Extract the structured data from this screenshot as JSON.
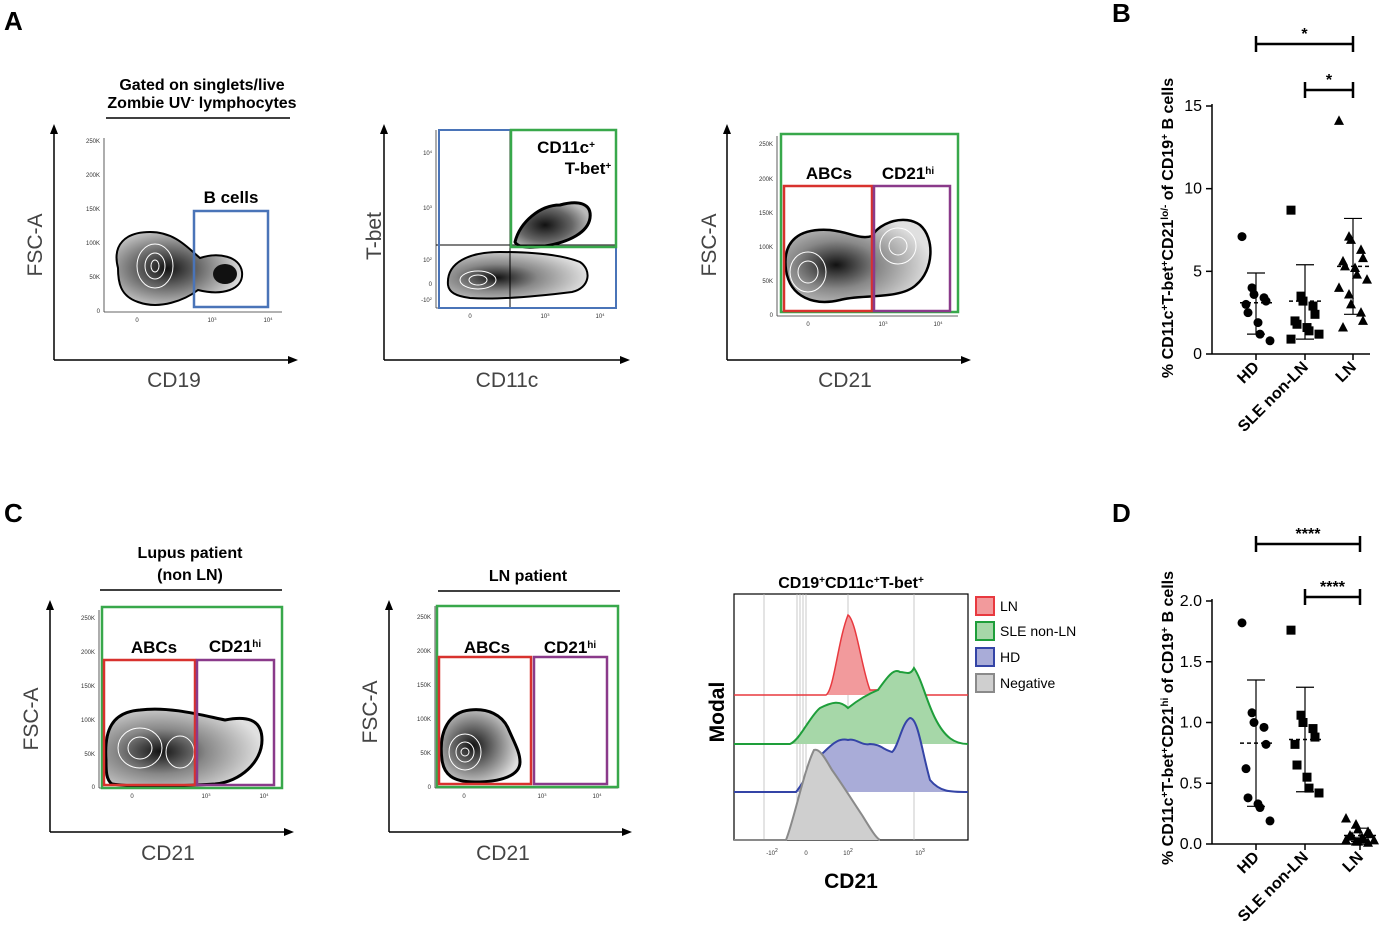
{
  "panels": {
    "A": {
      "letter": "A",
      "plot1": {
        "header_line1": "Gated on singlets/live",
        "header_line2_a": "Zombie UV",
        "header_line2_sup": "-",
        "header_line2_b": " lymphocytes",
        "y_label": "FSC-A",
        "x_label": "CD19",
        "gate_label": "B cells",
        "y_ticks": [
          "250K",
          "200K",
          "150K",
          "100K",
          "50K",
          "0"
        ],
        "x_ticks": [
          "0",
          "10",
          "10"
        ],
        "x_tick_sup": [
          "",
          "3",
          "4"
        ]
      },
      "plot2": {
        "y_label": "T-bet",
        "x_label": "CD11c",
        "gate_label_a": "CD11c",
        "gate_label_a_sup": "+",
        "gate_label_b": "T-bet",
        "gate_label_b_sup": "+",
        "y_ticks": [
          "10",
          "10",
          "10",
          "0",
          "-10"
        ],
        "y_tick_sup": [
          "4",
          "3",
          "2",
          "",
          "2"
        ],
        "x_ticks": [
          "0",
          "10",
          "10"
        ],
        "x_tick_sup": [
          "",
          "3",
          "4"
        ]
      },
      "plot3": {
        "y_label": "FSC-A",
        "x_label": "CD21",
        "gate1_label": "ABCs",
        "gate2_label": "CD21",
        "gate2_sup": "hi",
        "y_ticks": [
          "250K",
          "200K",
          "150K",
          "100K",
          "50K",
          "0"
        ],
        "x_ticks": [
          "0",
          "10",
          "10"
        ],
        "x_tick_sup": [
          "",
          "3",
          "4"
        ]
      }
    },
    "B": {
      "letter": "B",
      "y_label_parts": [
        "% CD11c",
        "+",
        "T-bet",
        "+",
        "CD21",
        "lo/-",
        " of CD19",
        "+",
        " B cells"
      ],
      "sig": [
        "*",
        "*"
      ]
    },
    "C": {
      "letter": "C",
      "plot1": {
        "header_line1": "Lupus patient",
        "header_line2": "(non LN)",
        "y_label": "FSC-A",
        "x_label": "CD21",
        "gate1_label": "ABCs",
        "gate2_label": "CD21",
        "gate2_sup": "hi",
        "y_ticks": [
          "250K",
          "200K",
          "150K",
          "100K",
          "50K",
          "0"
        ],
        "x_ticks": [
          "0",
          "10",
          "10"
        ],
        "x_tick_sup": [
          "",
          "3",
          "4"
        ]
      },
      "plot2": {
        "header": "LN patient",
        "y_label": "FSC-A",
        "x_label": "CD21",
        "gate1_label": "ABCs",
        "gate2_label": "CD21",
        "gate2_sup": "hi",
        "y_ticks": [
          "250K",
          "200K",
          "150K",
          "100K",
          "50K",
          "0"
        ],
        "x_ticks": [
          "0",
          "10",
          "10"
        ],
        "x_tick_sup": [
          "",
          "3",
          "4"
        ]
      },
      "histogram": {
        "title_parts": [
          "CD19",
          "+",
          "CD11c",
          "+",
          "T-bet",
          "+"
        ],
        "y_label": "Modal",
        "x_label": "CD21",
        "x_ticks": [
          "-10",
          "0",
          "10",
          "10"
        ],
        "x_tick_sup": [
          "2",
          "",
          "2",
          "3"
        ],
        "legend": [
          {
            "label": "LN",
            "color": "#e8393f",
            "fill": "#f29a9c"
          },
          {
            "label": "SLE non-LN",
            "color": "#1e9e3a",
            "fill": "#a6d7a8"
          },
          {
            "label": "HD",
            "color": "#3444a6",
            "fill": "#a9acd8"
          },
          {
            "label": "Negative",
            "color": "#8a8a8a",
            "fill": "#cfcfcf"
          }
        ]
      }
    },
    "D": {
      "letter": "D",
      "y_label_parts": [
        "% CD11c",
        "+",
        "T-bet",
        "+",
        "CD21",
        "hi",
        " of CD19",
        "+",
        " B cells"
      ],
      "sig": [
        "****",
        "****"
      ]
    }
  },
  "chart_data": [
    {
      "type": "scatter",
      "panel": "B",
      "categories": [
        "HD",
        "SLE non-LN",
        "LN"
      ],
      "ylim": [
        0,
        15
      ],
      "yticks": [
        "0",
        "5",
        "10",
        "15"
      ],
      "ytick_values": [
        0,
        5,
        10,
        15
      ],
      "series": [
        {
          "name": "HD",
          "marker": "circle",
          "values": [
            7.1,
            4.0,
            3.6,
            3.4,
            3.2,
            3.0,
            2.5,
            1.9,
            1.2,
            0.8
          ],
          "mean": 3.1,
          "sd_low": 1.2,
          "sd_high": 4.9
        },
        {
          "name": "SLE non-LN",
          "marker": "square",
          "values": [
            8.7,
            3.5,
            3.2,
            2.9,
            2.4,
            2.0,
            1.8,
            1.6,
            1.4,
            1.2,
            0.9
          ],
          "mean": 3.2,
          "sd_low": 0.9,
          "sd_high": 5.4
        },
        {
          "name": "LN",
          "marker": "triangle",
          "values": [
            14.1,
            7.1,
            6.9,
            6.3,
            5.8,
            5.6,
            5.3,
            5.2,
            4.8,
            4.5,
            4.0,
            3.6,
            3.0,
            2.5,
            2.0,
            1.6
          ],
          "mean": 5.3,
          "sd_low": 2.4,
          "sd_high": 8.2
        }
      ],
      "significance": [
        {
          "from": "HD",
          "to": "LN",
          "label": "*"
        },
        {
          "from": "SLE non-LN",
          "to": "LN",
          "label": "*"
        }
      ]
    },
    {
      "type": "scatter",
      "panel": "D",
      "categories": [
        "HD",
        "SLE non-LN",
        "LN"
      ],
      "ylim": [
        0,
        2.0
      ],
      "yticks": [
        "0.0",
        "0.5",
        "1.0",
        "1.5",
        "2.0"
      ],
      "ytick_values": [
        0,
        0.5,
        1.0,
        1.5,
        2.0
      ],
      "series": [
        {
          "name": "HD",
          "marker": "circle",
          "values": [
            1.82,
            1.08,
            1.0,
            0.96,
            0.82,
            0.62,
            0.38,
            0.33,
            0.3,
            0.19
          ],
          "mean": 0.83,
          "sd_low": 0.31,
          "sd_high": 1.35
        },
        {
          "name": "SLE non-LN",
          "marker": "square",
          "values": [
            1.76,
            1.06,
            1.0,
            0.95,
            0.88,
            0.82,
            0.65,
            0.55,
            0.46,
            0.42
          ],
          "mean": 0.86,
          "sd_low": 0.43,
          "sd_high": 1.29
        },
        {
          "name": "LN",
          "marker": "triangle",
          "values": [
            0.21,
            0.16,
            0.12,
            0.1,
            0.08,
            0.07,
            0.06,
            0.05,
            0.04,
            0.03,
            0.03,
            0.02,
            0.02,
            0.01
          ],
          "mean": 0.07,
          "sd_low": 0.02,
          "sd_high": 0.13
        }
      ],
      "significance": [
        {
          "from": "HD",
          "to": "LN",
          "label": "****"
        },
        {
          "from": "SLE non-LN",
          "to": "LN",
          "label": "****"
        }
      ]
    }
  ]
}
